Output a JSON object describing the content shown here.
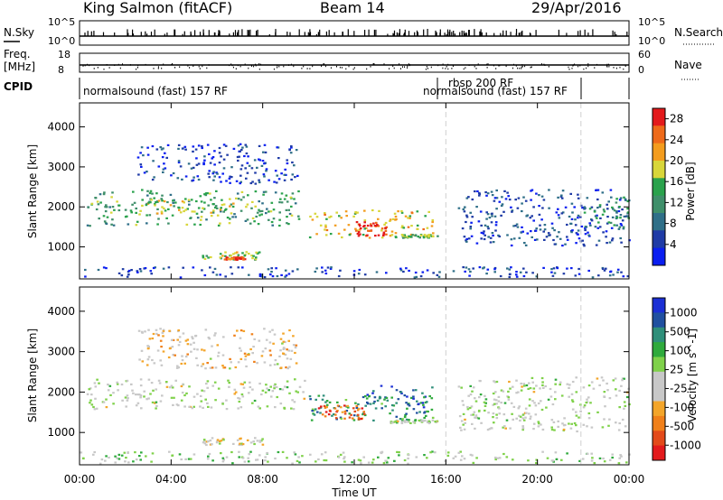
{
  "header": {
    "title": "King Salmon (fitACF)",
    "beam": "Beam 14",
    "date": "29/Apr/2016"
  },
  "top_panels": {
    "nsky_label": "N.Sky",
    "nsearch_label": "N.Search",
    "nsky_ticks": [
      "10^5",
      "10^0"
    ],
    "nsearch_ticks": [
      "10^5",
      "10^0"
    ],
    "freq_label_1": "Freq.",
    "freq_label_2": "[MHz]",
    "freq_ticks": [
      "18",
      "8"
    ],
    "nave_label": "Nave",
    "nave_ticks": [
      "60",
      "0"
    ],
    "cpid_label": "CPID",
    "modes": [
      {
        "text": "normalsound (fast) 157 RF"
      },
      {
        "text": "rbsp 200 RF"
      },
      {
        "text": "normalsound (fast) 157 RF"
      }
    ]
  },
  "x_axis": {
    "label": "Time UT",
    "ticks": [
      "00:00",
      "04:00",
      "08:00",
      "12:00",
      "16:00",
      "20:00",
      "00:00"
    ]
  },
  "colors": {
    "power": [
      "#0a1ef0",
      "#1f3ba6",
      "#2f6f88",
      "#3f8f6a",
      "#2aa24c",
      "#d8d63a",
      "#f39c1e",
      "#ee6a1a",
      "#e31a1c"
    ],
    "velocity": [
      "#1b2fd4",
      "#2050a0",
      "#2f8f7a",
      "#2faa3c",
      "#7fd14a",
      "#c8c8c8",
      "#c8c8c8",
      "#f3a52a",
      "#f0801a",
      "#e34a1a",
      "#e31a1c"
    ]
  },
  "chart_data": [
    {
      "type": "heatmap",
      "title": "Power",
      "xlabel": "Time UT",
      "ylabel": "Slant Range [km]",
      "xlim": [
        0,
        24
      ],
      "ylim": [
        200,
        4600
      ],
      "yticks": [
        "1000",
        "2000",
        "3000",
        "4000"
      ],
      "colorbar": {
        "label": "Power [dB]",
        "ticks": [
          "4",
          "8",
          "12",
          "16",
          "20",
          "24",
          "28"
        ],
        "range": [
          0,
          30
        ]
      },
      "regions": [
        {
          "t": [
            0.3,
            9.8
          ],
          "r": [
            1550,
            2450
          ],
          "level": 0.45
        },
        {
          "t": [
            2.8,
            6.8
          ],
          "r": [
            1850,
            2200
          ],
          "level": 0.6
        },
        {
          "t": [
            10.0,
            15.4
          ],
          "r": [
            1250,
            1950
          ],
          "level": 0.65
        },
        {
          "t": [
            12.0,
            13.4
          ],
          "r": [
            1300,
            1650
          ],
          "level": 0.95
        },
        {
          "t": [
            5.3,
            8.0
          ],
          "r": [
            700,
            900
          ],
          "level": 0.55
        },
        {
          "t": [
            6.3,
            7.2
          ],
          "r": [
            700,
            770
          ],
          "level": 0.9
        },
        {
          "t": [
            14.0,
            15.6
          ],
          "r": [
            1250,
            1330
          ],
          "level": 0.5
        },
        {
          "t": [
            0,
            24
          ],
          "r": [
            260,
            520
          ],
          "level": 0.15
        },
        {
          "t": [
            2.5,
            9.5
          ],
          "r": [
            2600,
            3600
          ],
          "level": 0.15
        },
        {
          "t": [
            16.5,
            24
          ],
          "r": [
            1050,
            2450
          ],
          "level": 0.18
        },
        {
          "t": [
            22.0,
            24
          ],
          "r": [
            1500,
            2300
          ],
          "level": 0.4
        }
      ]
    },
    {
      "type": "heatmap",
      "title": "Velocity",
      "xlabel": "Time UT",
      "ylabel": "Slant Range [km]",
      "xlim": [
        0,
        24
      ],
      "ylim": [
        200,
        4600
      ],
      "yticks": [
        "1000",
        "2000",
        "3000",
        "4000"
      ],
      "colorbar": {
        "label": "Velocity [m s^-1]",
        "ticks": [
          "1000",
          "500",
          "100",
          "25",
          "-25",
          "-100",
          "-500",
          "-1000"
        ]
      },
      "regions": [
        {
          "t": [
            0.3,
            9.8
          ],
          "r": [
            1600,
            2350
          ],
          "level": 0.5
        },
        {
          "t": [
            10.0,
            15.4
          ],
          "r": [
            1300,
            1950
          ],
          "level": 0.25
        },
        {
          "t": [
            10.3,
            12.5
          ],
          "r": [
            1350,
            1700
          ],
          "level": 0.8
        },
        {
          "t": [
            12.5,
            15.4
          ],
          "r": [
            1600,
            2200
          ],
          "level": 0.15
        },
        {
          "t": [
            13.5,
            15.6
          ],
          "r": [
            1250,
            1330
          ],
          "level": 0.5
        },
        {
          "t": [
            5.3,
            8.0
          ],
          "r": [
            700,
            900
          ],
          "level": 0.55
        },
        {
          "t": [
            0,
            24
          ],
          "r": [
            250,
            550
          ],
          "level": 0.45
        },
        {
          "t": [
            2.5,
            9.5
          ],
          "r": [
            2600,
            3600
          ],
          "level": 0.6
        },
        {
          "t": [
            16.5,
            24
          ],
          "r": [
            1050,
            2400
          ],
          "level": 0.5
        }
      ]
    }
  ]
}
